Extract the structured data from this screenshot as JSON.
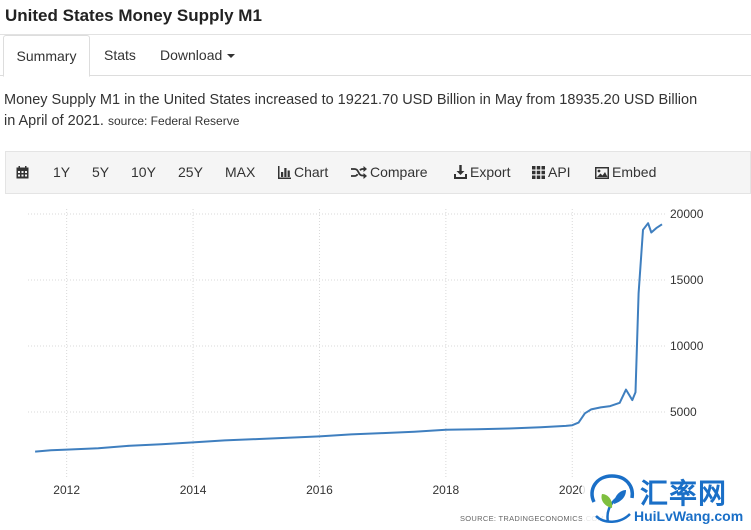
{
  "header": {
    "title": "United States Money Supply M1"
  },
  "tabs": [
    {
      "label": "Summary",
      "active": true
    },
    {
      "label": "Stats",
      "active": false
    },
    {
      "label": "Download",
      "active": false
    }
  ],
  "description": {
    "text": "Money Supply M1 in the United States increased to 19221.70 USD Billion in May from 18935.20 USD Billion in April of 2021.",
    "line1": "Money Supply M1 in the United States increased to 19221.70 USD Billion in May from 18935.20 USD Billion",
    "line2": "in April of 2021.",
    "source": "source: Federal Reserve"
  },
  "toolbar": {
    "items": [
      {
        "label": "",
        "icon": "calendar-icon"
      },
      {
        "label": "1Y"
      },
      {
        "label": "5Y"
      },
      {
        "label": "10Y"
      },
      {
        "label": "25Y"
      },
      {
        "label": "MAX"
      },
      {
        "label": "Chart",
        "icon": "bar-chart-icon"
      },
      {
        "label": "Compare",
        "icon": "shuffle-icon"
      },
      {
        "label": "Export",
        "icon": "download-icon"
      },
      {
        "label": "API",
        "icon": "grid-icon"
      },
      {
        "label": "Embed",
        "icon": "image-icon"
      }
    ]
  },
  "chart_data": {
    "type": "line",
    "title": "",
    "xlabel": "",
    "ylabel": "",
    "x_ticks": [
      "2012",
      "2014",
      "2016",
      "2018",
      "2020"
    ],
    "y_ticks": [
      5000,
      10000,
      15000,
      20000
    ],
    "xlim": [
      2011.42,
      2021.42
    ],
    "ylim": [
      0,
      20000
    ],
    "grid": true,
    "line_color": "#3f7fbf",
    "source_note": "SOURCE: TRADINGECONOMICS.COM",
    "series": [
      {
        "x": [
          2011.5,
          2011.75,
          2012.0,
          2012.5,
          2013.0,
          2013.5,
          2014.0,
          2014.5,
          2015.0,
          2015.5,
          2016.0,
          2016.5,
          2017.0,
          2017.5,
          2018.0,
          2018.5,
          2019.0,
          2019.5,
          2019.9,
          2020.0,
          2020.1,
          2020.2,
          2020.3,
          2020.45,
          2020.6,
          2020.75,
          2020.85,
          2020.95,
          2021.0,
          2021.05,
          2021.12,
          2021.2,
          2021.25,
          2021.33,
          2021.42
        ],
        "values": [
          2000,
          2100,
          2150,
          2250,
          2450,
          2550,
          2700,
          2850,
          2950,
          3050,
          3150,
          3300,
          3400,
          3500,
          3650,
          3700,
          3750,
          3850,
          3950,
          4000,
          4200,
          4900,
          5200,
          5350,
          5450,
          5700,
          6700,
          5900,
          6500,
          14000,
          18800,
          19300,
          18600,
          18935,
          19221
        ]
      }
    ]
  },
  "watermark": {
    "cn_text": "汇率网",
    "en_text": "HuiLvWang.com"
  }
}
